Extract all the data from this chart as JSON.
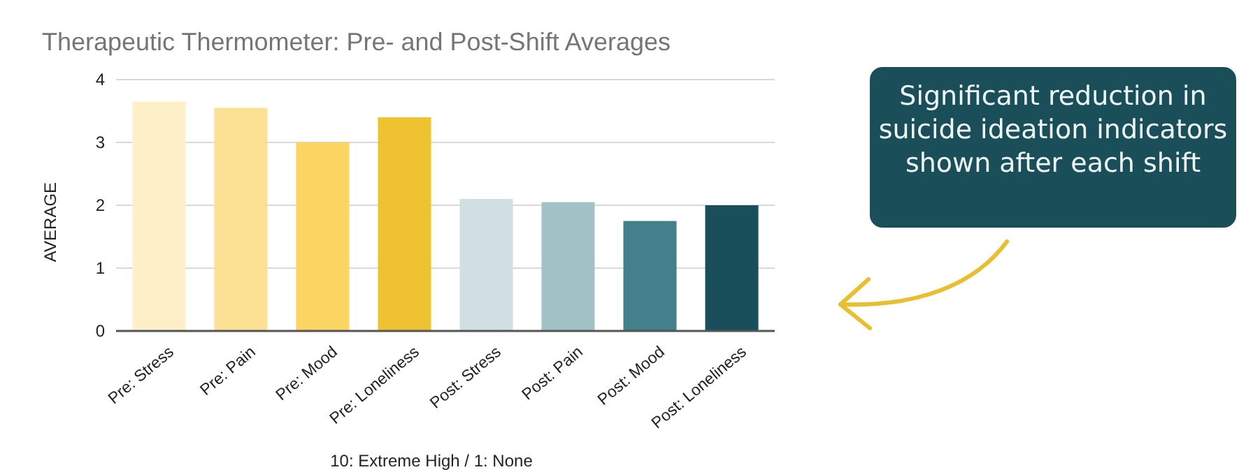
{
  "chart_data": {
    "type": "bar",
    "title": "Therapeutic Thermometer: Pre- and Post-Shift Averages",
    "xlabel": "10: Extreme High / 1: None",
    "ylabel": "AVERAGE",
    "categories": [
      "Pre: Stress",
      "Pre: Pain",
      "Pre: Mood",
      "Pre: Loneliness",
      "Post: Stress",
      "Post: Pain",
      "Post: Mood",
      "Post: Loneliness"
    ],
    "values": [
      3.65,
      3.55,
      3.0,
      3.4,
      2.1,
      2.05,
      1.75,
      2.0
    ],
    "colors": [
      "#fdf0c8",
      "#fce194",
      "#fbd561",
      "#efc231",
      "#d0e0e2",
      "#a2c2c6",
      "#447f8c",
      "#184f5b"
    ],
    "ylim": [
      0,
      4
    ],
    "yticks": [
      0,
      1,
      2,
      3,
      4
    ],
    "grid": "y",
    "annotations": [
      "Significant reduction in suicide ideation indicators shown after each shift"
    ]
  }
}
